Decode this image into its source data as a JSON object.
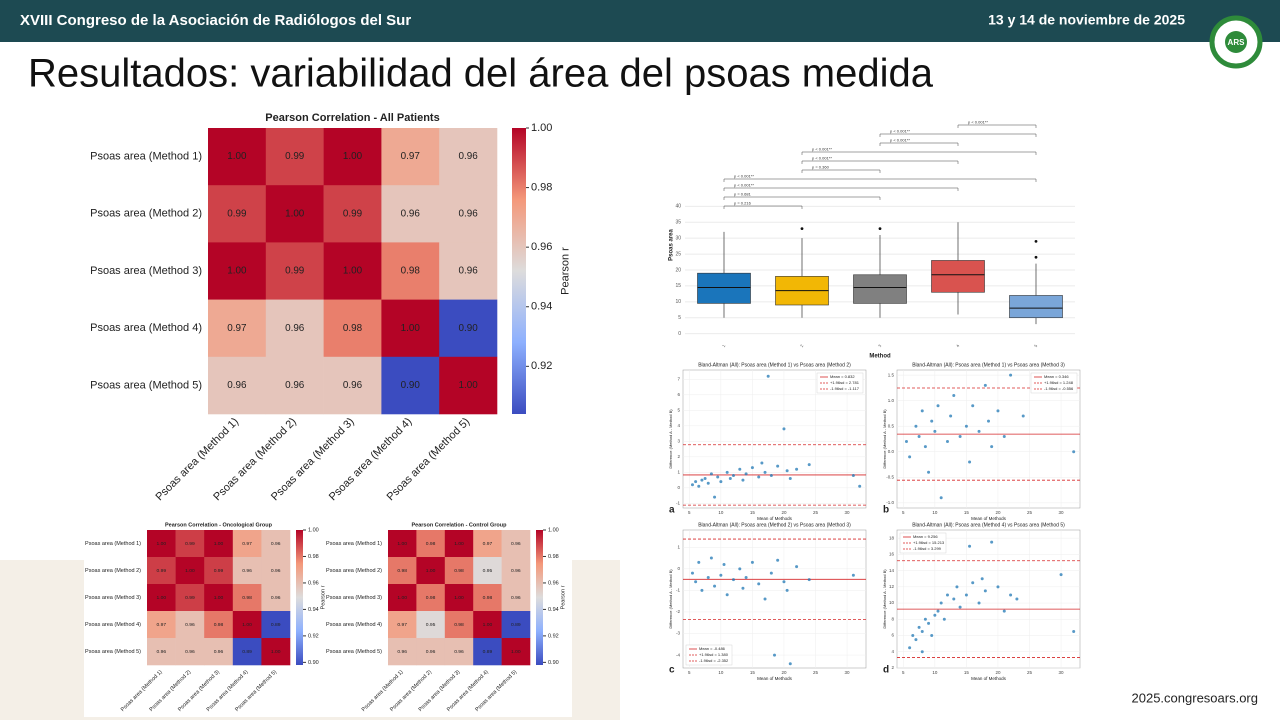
{
  "header": {
    "left": "XVIII Congreso de la Asociación de Radiólogos del Sur",
    "right": "13 y 14 de noviembre de 2025",
    "logo": "ARS"
  },
  "title": "Resultados: variabilidad del área del psoas medida",
  "footer": "2025.congresoars.org",
  "chart_data": [
    {
      "type": "heatmap",
      "title": "Pearson Correlation - All Patients",
      "rows": [
        "Psoas area (Method 1)",
        "Psoas area (Method 2)",
        "Psoas area (Method 3)",
        "Psoas area (Method 4)",
        "Psoas area (Method 5)"
      ],
      "columns": [
        "Psoas area (Method 1)",
        "Psoas area (Method 2)",
        "Psoas area (Method 3)",
        "Psoas area (Method 4)",
        "Psoas area (Method 5)"
      ],
      "values": [
        [
          1,
          0.99,
          1,
          0.97,
          0.96
        ],
        [
          0.99,
          1,
          0.99,
          0.96,
          0.96
        ],
        [
          1,
          0.99,
          1,
          0.98,
          0.96
        ],
        [
          0.97,
          0.96,
          0.98,
          1,
          0.9
        ],
        [
          0.96,
          0.96,
          0.96,
          0.9,
          1
        ]
      ],
      "value_labels": [
        [
          "1.00",
          "0.99",
          "1.00",
          "0.97",
          "0.96"
        ],
        [
          "0.99",
          "1.00",
          "0.99",
          "0.96",
          "0.96"
        ],
        [
          "1.00",
          "0.99",
          "1.00",
          "0.98",
          "0.96"
        ],
        [
          "0.97",
          "0.96",
          "0.98",
          "1.00",
          "0.90"
        ],
        [
          "0.96",
          "0.96",
          "0.96",
          "0.90",
          "1.00"
        ]
      ],
      "clim": [
        0.904,
        1
      ],
      "cticks": [
        {
          "value": 1,
          "label": "1.00"
        },
        0.98,
        0.96,
        0.94,
        0.92
      ],
      "colorbar_label": "Pearson r",
      "colormap": "coolwarm"
    },
    {
      "type": "heatmap",
      "title": "Pearson Correlation - Oncological Group",
      "rows": [
        "Psoas area (Method 1)",
        "Psoas area (Method 2)",
        "Psoas area (Method 3)",
        "Psoas area (Method 4)",
        "Psoas area (Method 5)"
      ],
      "columns": [
        "Psoas area (Method 1)",
        "Psoas area (Method 2)",
        "Psoas area (Method 3)",
        "Psoas area (Method 4)",
        "Psoas area (Method 5)"
      ],
      "values": [
        [
          1,
          0.99,
          1,
          0.97,
          0.96
        ],
        [
          0.99,
          1,
          0.99,
          0.96,
          0.96
        ],
        [
          1,
          0.99,
          1,
          0.98,
          0.96
        ],
        [
          0.97,
          0.96,
          0.98,
          1,
          0.89
        ],
        [
          0.96,
          0.96,
          0.96,
          0.89,
          1
        ]
      ],
      "value_labels": [
        [
          "1.00",
          "0.99",
          "1.00",
          "0.97",
          "0.96"
        ],
        [
          "0.99",
          "1.00",
          "0.99",
          "0.96",
          "0.96"
        ],
        [
          "1.00",
          "0.99",
          "1.00",
          "0.98",
          "0.96"
        ],
        [
          "0.97",
          "0.96",
          "0.98",
          "1.00",
          "0.89"
        ],
        [
          "0.96",
          "0.96",
          "0.96",
          "0.89",
          "1.00"
        ]
      ],
      "clim": [
        0.898,
        1
      ],
      "cticks": [
        {
          "value": 1,
          "label": "1.00"
        },
        0.98,
        0.96,
        0.94,
        0.92,
        {
          "value": 0.9,
          "label": "0.90"
        }
      ],
      "colorbar_label": "Pearson r",
      "colormap": "coolwarm"
    },
    {
      "type": "heatmap",
      "title": "Pearson Correlation - Control Group",
      "rows": [
        "Psoas area (Method 1)",
        "Psoas area (Method 2)",
        "Psoas area (Method 3)",
        "Psoas area (Method 4)",
        "Psoas area (Method 5)"
      ],
      "columns": [
        "Psoas area (Method 1)",
        "Psoas area (Method 2)",
        "Psoas area (Method 3)",
        "Psoas area (Method 4)",
        "Psoas area (Method 5)"
      ],
      "values": [
        [
          1,
          0.98,
          1,
          0.97,
          0.96
        ],
        [
          0.98,
          1,
          0.98,
          0.95,
          0.96
        ],
        [
          1,
          0.98,
          1,
          0.98,
          0.96
        ],
        [
          0.97,
          0.95,
          0.98,
          1,
          0.89
        ],
        [
          0.96,
          0.96,
          0.96,
          0.89,
          1
        ]
      ],
      "value_labels": [
        [
          "1.00",
          "0.98",
          "1.00",
          "0.97",
          "0.96"
        ],
        [
          "0.98",
          "1.00",
          "0.98",
          "0.95",
          "0.96"
        ],
        [
          "1.00",
          "0.98",
          "1.00",
          "0.98",
          "0.96"
        ],
        [
          "0.97",
          "0.95",
          "0.98",
          "1.00",
          "0.89"
        ],
        [
          "0.96",
          "0.96",
          "0.96",
          "0.89",
          "1.00"
        ]
      ],
      "clim": [
        0.898,
        1
      ],
      "cticks": [
        {
          "value": 1,
          "label": "1.00"
        },
        0.98,
        0.96,
        0.94,
        0.92,
        {
          "value": 0.9,
          "label": "0.90"
        }
      ],
      "colorbar_label": "Pearson r",
      "colormap": "coolwarm"
    },
    {
      "type": "box",
      "xlabel": "Method",
      "ylabel": "Psoas area",
      "categories": [
        "1",
        "2",
        "3",
        "4",
        "5"
      ],
      "colors": [
        "#1a75bb",
        "#f2b705",
        "#808080",
        "#d9534f",
        "#7aa6d9"
      ],
      "boxes": [
        {
          "low": 5,
          "q1": 9.5,
          "median": 14.5,
          "q3": 19,
          "high": 32,
          "outliers": []
        },
        {
          "low": 5,
          "q1": 9,
          "median": 13.5,
          "q3": 18,
          "high": 30,
          "outliers": [
            33
          ]
        },
        {
          "low": 5,
          "q1": 9.5,
          "median": 14.5,
          "q3": 18.5,
          "high": 31,
          "outliers": [
            33
          ]
        },
        {
          "low": 6,
          "q1": 13,
          "median": 18.5,
          "q3": 23,
          "high": 35,
          "outliers": []
        },
        {
          "low": 3,
          "q1": 5,
          "median": 8,
          "q3": 12,
          "high": 22,
          "outliers": [
            24,
            29
          ]
        }
      ],
      "ylim": [
        -2,
        42
      ],
      "yticks": [
        0,
        5,
        10,
        15,
        20,
        25,
        30,
        35,
        40
      ],
      "grid": true,
      "annotations": [
        "p = 0.216",
        "p = 0.681",
        "p < 0.001**",
        "p < 0.001**",
        "p = 0.360",
        "p < 0.001**",
        "p < 0.001**",
        "p < 0.001**",
        "p < 0.001**",
        "p < 0.001**"
      ]
    },
    {
      "type": "scatter",
      "panel": "a",
      "title": "Bland-Altman (All): Psoas area (Method 1) vs Psoas area (Method 2)",
      "xlabel": "Mean of Methods",
      "ylabel": "Difference (Method A - Method B)",
      "color": "#1f77b4",
      "grid": true,
      "legend": "upper right",
      "x": [
        5.5,
        6,
        6.5,
        7,
        7.5,
        8,
        8.5,
        9,
        9.5,
        10,
        11,
        11.5,
        12,
        13,
        13.5,
        14,
        15,
        16,
        16.5,
        17,
        17.5,
        18,
        19,
        20,
        20.5,
        21,
        22,
        24,
        31,
        32
      ],
      "y": [
        0.2,
        0.4,
        0.1,
        0.5,
        0.6,
        0.3,
        0.9,
        -0.6,
        0.7,
        0.4,
        1,
        0.6,
        0.8,
        1.2,
        0.5,
        0.9,
        1.3,
        0.7,
        1.6,
        1,
        7.2,
        0.8,
        1.4,
        3.8,
        1.1,
        0.6,
        1.2,
        1.5,
        0.8,
        0.1
      ],
      "xlim": [
        4,
        33
      ],
      "xticks": [
        5,
        10,
        15,
        20,
        25,
        30
      ],
      "ylim": [
        -1.3,
        7.6
      ],
      "yticks": [
        -1,
        0,
        1,
        2,
        3,
        4,
        5,
        6,
        7
      ],
      "reference_lines": [
        {
          "name": "Mean = 0.832",
          "value": 0.832,
          "color": "#d62728",
          "style": "solid"
        },
        {
          "name": "+1.96sd = 2.781",
          "value": 2.781,
          "color": "#d62728",
          "style": "dashed"
        },
        {
          "name": "-1.96sd = -1.117",
          "value": -1.117,
          "color": "#d62728",
          "style": "dashed"
        }
      ]
    },
    {
      "type": "scatter",
      "panel": "b",
      "title": "Bland-Altman (All): Psoas area (Method 1) vs Psoas area (Method 3)",
      "xlabel": "Mean of Methods",
      "ylabel": "Difference (Method A - Method B)",
      "color": "#1f77b4",
      "grid": true,
      "legend": "upper right",
      "x": [
        5.5,
        6,
        7,
        7.5,
        8,
        8.5,
        9,
        9.5,
        10,
        10.5,
        11,
        12,
        12.5,
        13,
        14,
        15,
        15.5,
        16,
        17,
        18,
        18.5,
        19,
        20,
        21,
        22,
        24,
        32
      ],
      "y": [
        0.2,
        -0.1,
        0.5,
        0.3,
        0.8,
        0.1,
        -0.4,
        0.6,
        0.4,
        0.9,
        -0.9,
        0.2,
        0.7,
        1.1,
        0.3,
        0.5,
        -0.2,
        0.9,
        0.4,
        1.3,
        0.6,
        0.1,
        0.8,
        0.3,
        1.5,
        0.7,
        0
      ],
      "xlim": [
        4,
        33
      ],
      "xticks": [
        5,
        10,
        15,
        20,
        25,
        30
      ],
      "ylim": [
        -1.1,
        1.6
      ],
      "yticks": [
        {
          "value": -1,
          "label": "-1.0"
        },
        -0.5,
        {
          "value": 0,
          "label": "0.0"
        },
        0.5,
        {
          "value": 1,
          "label": "1.0"
        },
        1.5
      ],
      "reference_lines": [
        {
          "name": "Mean = 0.346",
          "value": 0.346,
          "color": "#d62728",
          "style": "solid"
        },
        {
          "name": "+1.96sd = 1.248",
          "value": 1.248,
          "color": "#d62728",
          "style": "dashed"
        },
        {
          "name": "-1.96sd = -0.556",
          "value": -0.556,
          "color": "#d62728",
          "style": "dashed"
        }
      ]
    },
    {
      "type": "scatter",
      "panel": "c",
      "title": "Bland-Altman (All): Psoas area (Method 2) vs Psoas area (Method 3)",
      "xlabel": "Mean of Methods",
      "ylabel": "Difference (Method A - Method B)",
      "color": "#1f77b4",
      "grid": true,
      "legend": "lower left",
      "x": [
        5.5,
        6,
        6.5,
        7,
        8,
        8.5,
        9,
        10,
        10.5,
        11,
        12,
        13,
        13.5,
        14,
        15,
        16,
        17,
        18,
        18.5,
        19,
        20,
        20.5,
        21,
        22,
        24,
        31
      ],
      "y": [
        -0.2,
        -0.6,
        0.3,
        -1,
        -0.4,
        0.5,
        -0.8,
        -0.3,
        0.2,
        -1.2,
        -0.5,
        0,
        -0.9,
        -0.4,
        0.3,
        -0.7,
        -1.4,
        -0.2,
        -4,
        0.4,
        -0.6,
        -1,
        -4.4,
        0.1,
        -0.5,
        -0.3
      ],
      "xlim": [
        4,
        33
      ],
      "xticks": [
        5,
        10,
        15,
        20,
        25,
        30
      ],
      "ylim": [
        -4.6,
        1.8
      ],
      "yticks": [
        -4,
        -3,
        -2,
        -1,
        0,
        1
      ],
      "reference_lines": [
        {
          "name": "Mean = -0.486",
          "value": -0.486,
          "color": "#d62728",
          "style": "solid"
        },
        {
          "name": "+1.96sd = 1.380",
          "value": 1.38,
          "color": "#d62728",
          "style": "dashed"
        },
        {
          "name": "-1.96sd = -2.352",
          "value": -2.352,
          "color": "#d62728",
          "style": "dashed"
        }
      ]
    },
    {
      "type": "scatter",
      "panel": "d",
      "title": "Bland-Altman (All): Psoas area (Method 4) vs Psoas area (Method 5)",
      "xlabel": "Mean of Methods",
      "ylabel": "Difference (Method A - Method B)",
      "color": "#1f77b4",
      "grid": true,
      "legend": "upper left",
      "x": [
        6,
        6.5,
        7,
        7.5,
        8,
        8,
        8.5,
        9,
        9.5,
        10,
        10.5,
        11,
        11.5,
        12,
        13,
        13.5,
        14,
        15,
        15.5,
        16,
        17,
        17.5,
        18,
        19,
        20,
        21,
        22,
        23,
        30,
        32
      ],
      "y": [
        4.5,
        6,
        5.5,
        7,
        6.5,
        4,
        8,
        7.5,
        6,
        8.5,
        9,
        10,
        8,
        11,
        10.5,
        12,
        9.5,
        11,
        17,
        12.5,
        10,
        13,
        11.5,
        17.5,
        12,
        9,
        11,
        10.5,
        13.5,
        6.5
      ],
      "xlim": [
        4,
        33
      ],
      "xticks": [
        5,
        10,
        15,
        20,
        25,
        30
      ],
      "ylim": [
        2,
        19
      ],
      "yticks": [
        2,
        4,
        6,
        8,
        10,
        12,
        14,
        16,
        18
      ],
      "reference_lines": [
        {
          "name": "Mean = 9.256",
          "value": 9.256,
          "color": "#d62728",
          "style": "solid"
        },
        {
          "name": "+1.96sd = 15.213",
          "value": 15.213,
          "color": "#d62728",
          "style": "dashed"
        },
        {
          "name": "-1.96sd = 3.299",
          "value": 3.299,
          "color": "#d62728",
          "style": "dashed"
        }
      ]
    }
  ]
}
